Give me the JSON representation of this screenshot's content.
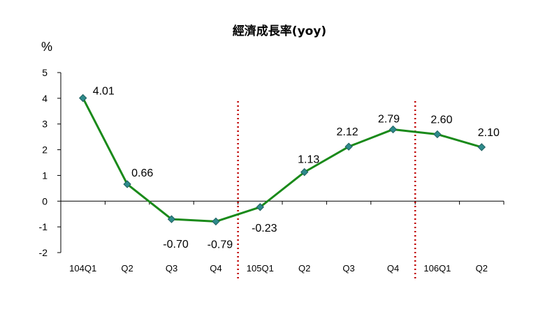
{
  "chart_data": {
    "type": "line",
    "title": "經濟成長率(yoy)",
    "unit_label": "%",
    "xlabel": "",
    "ylabel": "",
    "categories": [
      "104Q1",
      "Q2",
      "Q3",
      "Q4",
      "105Q1",
      "Q2",
      "Q3",
      "Q4",
      "106Q1",
      "Q2"
    ],
    "series": [
      {
        "values": [
          4.01,
          0.66,
          -0.7,
          -0.79,
          -0.23,
          1.13,
          2.12,
          2.79,
          2.6,
          2.1
        ],
        "data_labels": [
          "4.01",
          "0.66",
          "-0.70",
          "-0.79",
          "-0.23",
          "1.13",
          "2.12",
          "2.79",
          "2.60",
          "2.10"
        ],
        "color": "#1a8a1a",
        "marker_color": "#2e8b8b"
      }
    ],
    "ylim": [
      -2,
      5
    ],
    "yticks": [
      "5",
      "4",
      "3",
      "2",
      "1",
      "0",
      "-1",
      "-2"
    ],
    "ytick_values": [
      5,
      4,
      3,
      2,
      1,
      0,
      -1,
      -2
    ],
    "grid": false,
    "legend": "none",
    "divider_lines_after": [
      "Q4",
      "Q4"
    ],
    "divider_color": "#c00000"
  }
}
